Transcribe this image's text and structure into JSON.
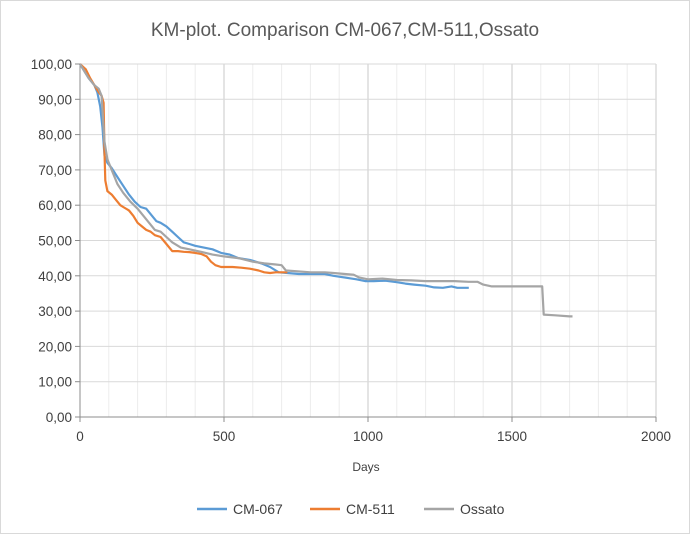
{
  "chart_data": {
    "type": "line",
    "title": "KM-plot. Comparison CM-067,CM-511,Ossato",
    "xlabel": "Days",
    "ylabel": "",
    "xlim": [
      0,
      2000
    ],
    "ylim": [
      0,
      100
    ],
    "x_ticks": [
      0,
      500,
      1000,
      1500,
      2000
    ],
    "x_tick_labels": [
      "0",
      "500",
      "1000",
      "1500",
      "2000"
    ],
    "y_ticks": [
      0,
      10,
      20,
      30,
      40,
      50,
      60,
      70,
      80,
      90,
      100
    ],
    "y_tick_labels": [
      "0,00",
      "10,00",
      "20,00",
      "30,00",
      "40,00",
      "50,00",
      "60,00",
      "70,00",
      "80,00",
      "90,00",
      "100,00"
    ],
    "grid": true,
    "minor_grid": true,
    "legend_position": "bottom",
    "series": [
      {
        "name": "CM-067",
        "color": "#5b9bd5",
        "points": [
          [
            0,
            100
          ],
          [
            15,
            98
          ],
          [
            30,
            96
          ],
          [
            50,
            94
          ],
          [
            60,
            92
          ],
          [
            70,
            88
          ],
          [
            78,
            82
          ],
          [
            85,
            74
          ],
          [
            95,
            72
          ],
          [
            110,
            70.5
          ],
          [
            130,
            68
          ],
          [
            150,
            65.5
          ],
          [
            170,
            63
          ],
          [
            190,
            61
          ],
          [
            210,
            59.5
          ],
          [
            230,
            59
          ],
          [
            250,
            57
          ],
          [
            265,
            55.5
          ],
          [
            280,
            55
          ],
          [
            300,
            54
          ],
          [
            320,
            52.5
          ],
          [
            340,
            51
          ],
          [
            360,
            49.5
          ],
          [
            380,
            49
          ],
          [
            400,
            48.5
          ],
          [
            430,
            48
          ],
          [
            460,
            47.5
          ],
          [
            490,
            46.5
          ],
          [
            520,
            46
          ],
          [
            550,
            45
          ],
          [
            590,
            44.5
          ],
          [
            630,
            43.5
          ],
          [
            660,
            42.5
          ],
          [
            690,
            41
          ],
          [
            720,
            40.8
          ],
          [
            760,
            40.5
          ],
          [
            800,
            40.5
          ],
          [
            850,
            40.5
          ],
          [
            880,
            40
          ],
          [
            920,
            39.5
          ],
          [
            960,
            39
          ],
          [
            990,
            38.5
          ],
          [
            1020,
            38.5
          ],
          [
            1060,
            38.6
          ],
          [
            1100,
            38.2
          ],
          [
            1130,
            37.8
          ],
          [
            1160,
            37.5
          ],
          [
            1200,
            37.2
          ],
          [
            1230,
            36.7
          ],
          [
            1260,
            36.6
          ],
          [
            1290,
            37
          ],
          [
            1310,
            36.6
          ],
          [
            1350,
            36.6
          ]
        ]
      },
      {
        "name": "CM-511",
        "color": "#ed7d31",
        "points": [
          [
            0,
            100
          ],
          [
            20,
            98.5
          ],
          [
            35,
            96
          ],
          [
            50,
            94
          ],
          [
            65,
            92
          ],
          [
            75,
            91
          ],
          [
            82,
            89
          ],
          [
            85,
            75
          ],
          [
            88,
            67
          ],
          [
            95,
            64
          ],
          [
            110,
            63
          ],
          [
            125,
            61.5
          ],
          [
            140,
            60
          ],
          [
            150,
            59.5
          ],
          [
            170,
            58.5
          ],
          [
            185,
            57
          ],
          [
            200,
            55
          ],
          [
            215,
            54
          ],
          [
            230,
            53
          ],
          [
            245,
            52.5
          ],
          [
            260,
            51.5
          ],
          [
            280,
            51
          ],
          [
            300,
            49
          ],
          [
            320,
            47
          ],
          [
            340,
            47
          ],
          [
            360,
            46.8
          ],
          [
            380,
            46.7
          ],
          [
            400,
            46.5
          ],
          [
            420,
            46.2
          ],
          [
            440,
            45.5
          ],
          [
            455,
            44
          ],
          [
            470,
            43
          ],
          [
            490,
            42.5
          ],
          [
            530,
            42.5
          ],
          [
            560,
            42.3
          ],
          [
            590,
            42
          ],
          [
            620,
            41.5
          ],
          [
            640,
            41
          ],
          [
            660,
            40.8
          ],
          [
            680,
            41
          ],
          [
            700,
            41
          ],
          [
            720,
            41
          ]
        ]
      },
      {
        "name": "Ossato",
        "color": "#a5a5a5",
        "points": [
          [
            0,
            100
          ],
          [
            15,
            98
          ],
          [
            30,
            96
          ],
          [
            50,
            94
          ],
          [
            65,
            93
          ],
          [
            75,
            91
          ],
          [
            85,
            78
          ],
          [
            95,
            73
          ],
          [
            110,
            70
          ],
          [
            130,
            66
          ],
          [
            150,
            63.5
          ],
          [
            175,
            61
          ],
          [
            200,
            59
          ],
          [
            220,
            57
          ],
          [
            240,
            55
          ],
          [
            260,
            53
          ],
          [
            280,
            52.5
          ],
          [
            300,
            51
          ],
          [
            320,
            49.5
          ],
          [
            350,
            48
          ],
          [
            380,
            47.5
          ],
          [
            420,
            46.8
          ],
          [
            460,
            46
          ],
          [
            500,
            45.5
          ],
          [
            550,
            45
          ],
          [
            600,
            44
          ],
          [
            640,
            43.5
          ],
          [
            680,
            43.2
          ],
          [
            700,
            43
          ],
          [
            715,
            41.5
          ],
          [
            750,
            41.3
          ],
          [
            800,
            41
          ],
          [
            850,
            41
          ],
          [
            880,
            40.8
          ],
          [
            920,
            40.5
          ],
          [
            950,
            40.3
          ],
          [
            970,
            39.5
          ],
          [
            1000,
            39
          ],
          [
            1050,
            39.2
          ],
          [
            1100,
            38.8
          ],
          [
            1150,
            38.7
          ],
          [
            1200,
            38.5
          ],
          [
            1250,
            38.5
          ],
          [
            1300,
            38.5
          ],
          [
            1350,
            38.3
          ],
          [
            1380,
            38.3
          ],
          [
            1400,
            37.5
          ],
          [
            1430,
            37
          ],
          [
            1500,
            37
          ],
          [
            1560,
            37
          ],
          [
            1605,
            37
          ],
          [
            1610,
            29
          ],
          [
            1650,
            28.8
          ],
          [
            1700,
            28.5
          ],
          [
            1710,
            28.5
          ]
        ]
      }
    ]
  }
}
